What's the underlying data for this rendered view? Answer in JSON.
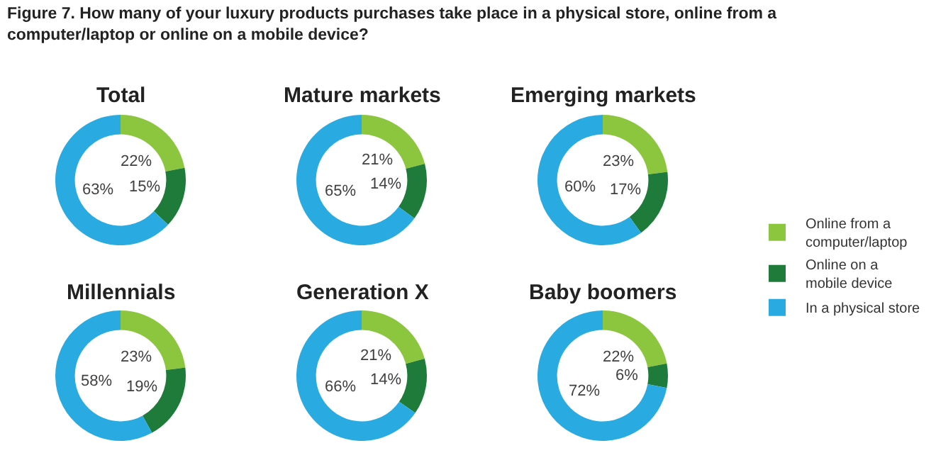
{
  "chart_data": [
    {
      "type": "other",
      "title": "Figure 7. How many of your luxury products purchases take place in a physical store, online from a computer/laptop or online on a mobile device?"
    },
    {
      "type": "donut",
      "title": "Total",
      "categories": [
        "Online from a computer/laptop",
        "Online on a mobile device",
        "In a physical store"
      ],
      "values": [
        22,
        15,
        63
      ],
      "value_labels": [
        "22%",
        "15%",
        "63%"
      ],
      "colors": [
        "#8cc63f",
        "#1e7b3a",
        "#29abe2"
      ],
      "legend": "right"
    },
    {
      "type": "donut",
      "title": "Mature markets",
      "categories": [
        null,
        null,
        null
      ],
      "values": [
        21,
        14,
        65
      ],
      "value_labels": [
        "21%",
        "14%",
        "65%"
      ],
      "colors": [
        "#8cc63f",
        "#1e7b3a",
        "#29abe2"
      ]
    },
    {
      "type": "donut",
      "title": "Emerging markets",
      "categories": [
        null,
        null,
        null
      ],
      "values": [
        23,
        17,
        60
      ],
      "value_labels": [
        "23%",
        "17%",
        "60%"
      ],
      "colors": [
        "#8cc63f",
        "#1e7b3a",
        "#29abe2"
      ]
    },
    {
      "type": "donut",
      "title": "Millennials",
      "categories": [
        null,
        null,
        null
      ],
      "values": [
        23,
        19,
        58
      ],
      "value_labels": [
        "23%",
        "19%",
        "58%"
      ],
      "colors": [
        "#8cc63f",
        "#1e7b3a",
        "#29abe2"
      ]
    },
    {
      "type": "donut",
      "title": "Generation X",
      "categories": [
        null,
        null,
        null
      ],
      "values": [
        21,
        14,
        66
      ],
      "value_labels": [
        "21%",
        "14%",
        "66%"
      ],
      "colors": [
        "#8cc63f",
        "#1e7b3a",
        "#29abe2"
      ]
    },
    {
      "type": "donut",
      "title": "Baby boomers",
      "categories": [
        null,
        null,
        null
      ],
      "values": [
        22,
        6,
        72
      ],
      "value_labels": [
        "22%",
        "6%",
        "72%"
      ],
      "colors": [
        "#8cc63f",
        "#1e7b3a",
        "#29abe2"
      ]
    }
  ]
}
